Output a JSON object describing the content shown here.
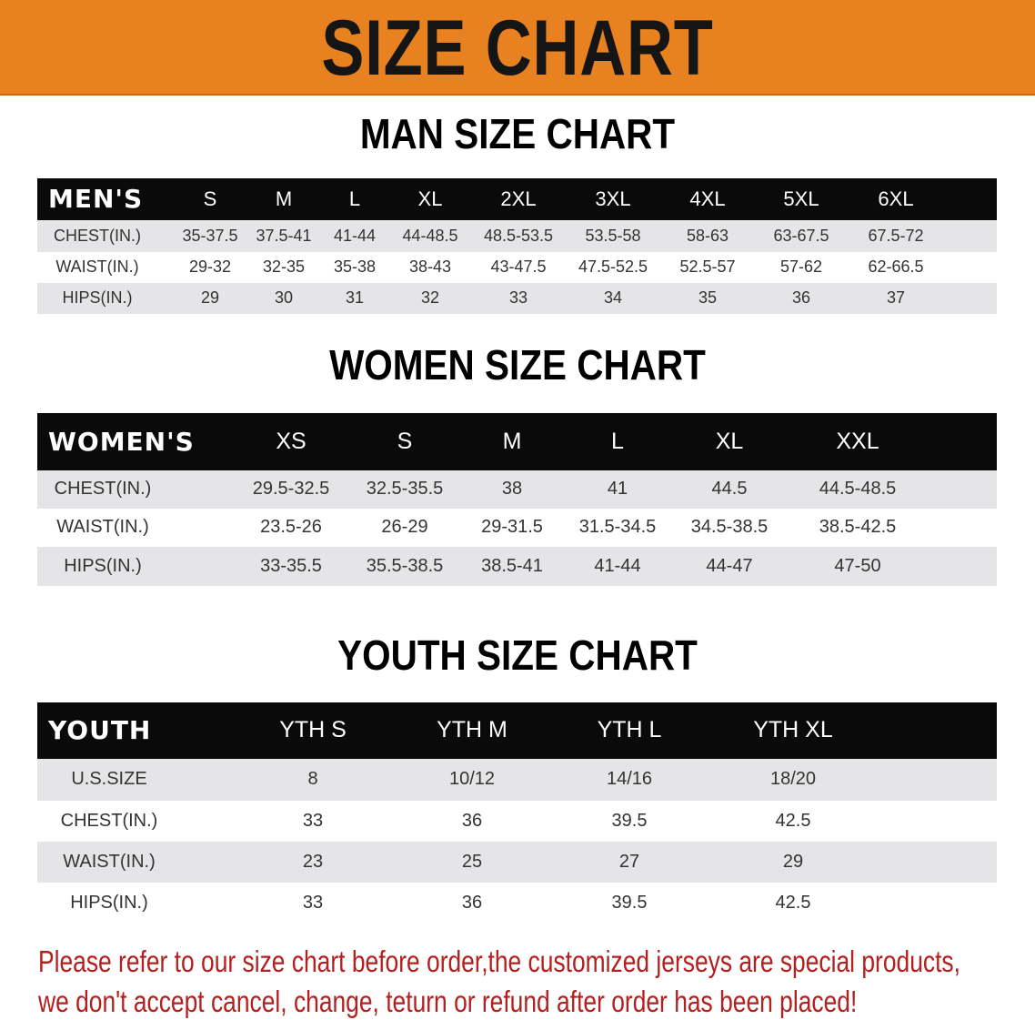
{
  "banner_title": "SIZE CHART",
  "colors": {
    "banner": "#e8811f",
    "header": "#0a0a0a",
    "stripe": "#e5e5e7",
    "note": "#b3201f"
  },
  "men": {
    "title": "MAN SIZE CHART",
    "header_label": "MEN'S",
    "sizes": [
      "S",
      "M",
      "L",
      "XL",
      "2XL",
      "3XL",
      "4XL",
      "5XL",
      "6XL"
    ],
    "rows": [
      {
        "label": "CHEST(IN.)",
        "values": [
          "35-37.5",
          "37.5-41",
          "41-44",
          "44-48.5",
          "48.5-53.5",
          "53.5-58",
          "58-63",
          "63-67.5",
          "67.5-72"
        ]
      },
      {
        "label": "WAIST(IN.)",
        "values": [
          "29-32",
          "32-35",
          "35-38",
          "38-43",
          "43-47.5",
          "47.5-52.5",
          "52.5-57",
          "57-62",
          "62-66.5"
        ]
      },
      {
        "label": "HIPS(IN.)",
        "values": [
          "29",
          "30",
          "31",
          "32",
          "33",
          "34",
          "35",
          "36",
          "37"
        ]
      }
    ]
  },
  "women": {
    "title": "WOMEN SIZE CHART",
    "header_label": "WOMEN'S",
    "sizes": [
      "XS",
      "S",
      "M",
      "L",
      "XL",
      "XXL"
    ],
    "rows": [
      {
        "label": "CHEST(IN.)",
        "values": [
          "29.5-32.5",
          "32.5-35.5",
          "38",
          "41",
          "44.5",
          "44.5-48.5"
        ]
      },
      {
        "label": "WAIST(IN.)",
        "values": [
          "23.5-26",
          "26-29",
          "29-31.5",
          "31.5-34.5",
          "34.5-38.5",
          "38.5-42.5"
        ]
      },
      {
        "label": "HIPS(IN.)",
        "values": [
          "33-35.5",
          "35.5-38.5",
          "38.5-41",
          "41-44",
          "44-47",
          "47-50"
        ]
      }
    ]
  },
  "youth": {
    "title": "YOUTH SIZE CHART",
    "header_label": "YOUTH",
    "sizes": [
      "YTH S",
      "YTH M",
      "YTH L",
      "YTH XL"
    ],
    "rows": [
      {
        "label": "U.S.SIZE",
        "values": [
          "8",
          "10/12",
          "14/16",
          "18/20"
        ]
      },
      {
        "label": "CHEST(IN.)",
        "values": [
          "33",
          "36",
          "39.5",
          "42.5"
        ]
      },
      {
        "label": "WAIST(IN.)",
        "values": [
          "23",
          "25",
          "27",
          "29"
        ]
      },
      {
        "label": "HIPS(IN.)",
        "values": [
          "33",
          "36",
          "39.5",
          "42.5"
        ]
      }
    ]
  },
  "notice": {
    "line1": "Please refer to our size chart before order,the customized jerseys are special products,",
    "line2": "we don't accept cancel, change, teturn or refund after order has been placed!"
  }
}
